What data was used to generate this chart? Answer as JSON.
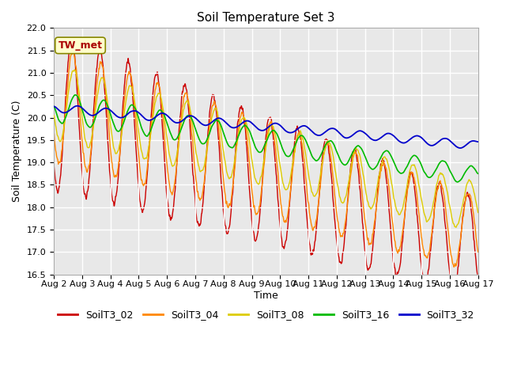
{
  "title": "Soil Temperature Set 3",
  "xlabel": "Time",
  "ylabel": "Soil Temperature (C)",
  "ylim": [
    16.5,
    22.0
  ],
  "x_tick_labels": [
    "Aug 2",
    "Aug 3",
    "Aug 4",
    "Aug 5",
    "Aug 6",
    "Aug 7",
    "Aug 8",
    "Aug 9",
    "Aug 9",
    "Aug 10",
    "Aug 11",
    "Aug 12",
    "Aug 13",
    "Aug 14",
    "Aug 15",
    "Aug 16",
    "Aug 17"
  ],
  "series_colors": {
    "SoilT3_02": "#cc0000",
    "SoilT3_04": "#ff8800",
    "SoilT3_08": "#ddcc00",
    "SoilT3_16": "#00bb00",
    "SoilT3_32": "#0000cc"
  },
  "annotation_text": "TW_met",
  "annotation_color": "#aa0000",
  "annotation_bg": "#ffffcc",
  "annotation_border": "#888800",
  "fig_bg": "#ffffff",
  "plot_bg": "#e8e8e8",
  "grid_color": "#ffffff",
  "title_fontsize": 11,
  "axis_fontsize": 9,
  "tick_fontsize": 8,
  "legend_fontsize": 9
}
